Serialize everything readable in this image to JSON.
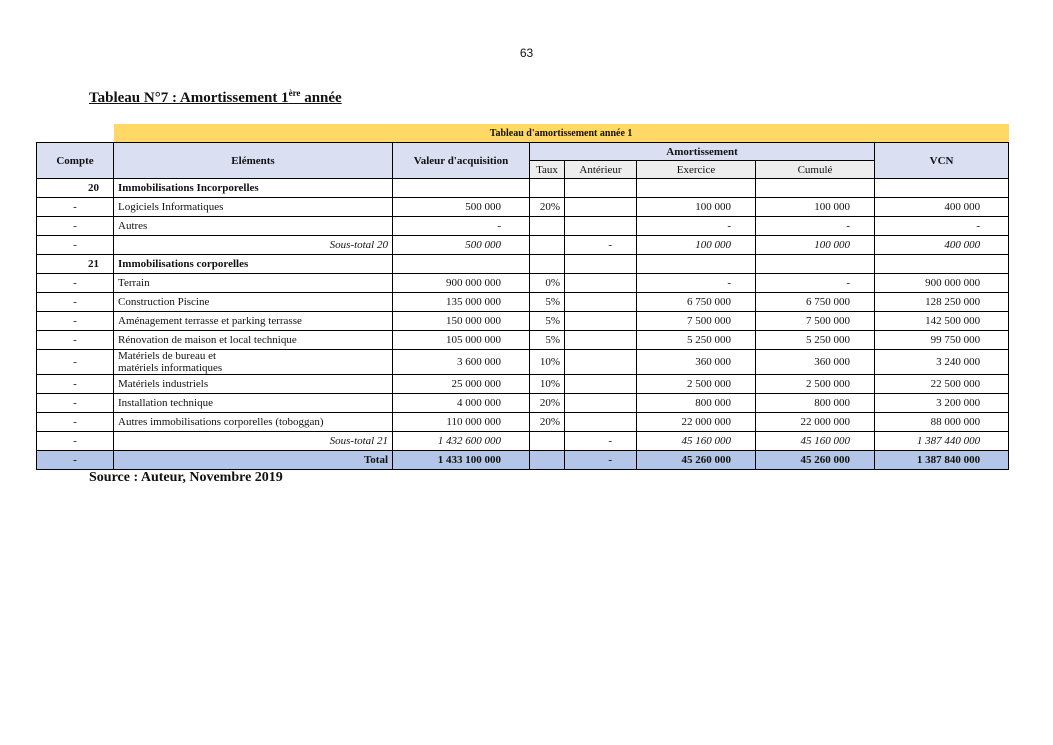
{
  "page_number": "63",
  "title": {
    "prefix": "Tableau N°7 : Amortissement 1",
    "sup": "ère",
    "suffix": " année"
  },
  "table": {
    "caption": "Tableau d'amortissement année 1",
    "headers": {
      "compte": "Compte",
      "elements": "Eléments",
      "valeur": "Valeur d'acquisition",
      "amortissement": "Amortissement",
      "vcn": "VCN",
      "taux": "Taux",
      "anterieur": "Antérieur",
      "exercice": "Exercice",
      "cumule": "Cumulé"
    },
    "rows": [
      {
        "type": "group",
        "compte": "20",
        "element": "Immobilisations Incorporelles",
        "valeur": "",
        "taux": "",
        "anterieur": "",
        "exercice": "",
        "cumule": "",
        "vcn": ""
      },
      {
        "type": "item",
        "compte": "-",
        "element": "Logiciels Informatiques",
        "valeur": "500 000",
        "taux": "20%",
        "anterieur": "",
        "exercice": "100 000",
        "cumule": "100 000",
        "vcn": "400 000"
      },
      {
        "type": "item",
        "compte": "-",
        "element": "Autres",
        "valeur": "-",
        "taux": "",
        "anterieur": "",
        "exercice": "-",
        "cumule": "-",
        "vcn": "-"
      },
      {
        "type": "sub",
        "compte": "-",
        "element": "Sous-total 20",
        "valeur": "500 000",
        "taux": "",
        "anterieur": "-",
        "exercice": "100 000",
        "cumule": "100 000",
        "vcn": "400 000"
      },
      {
        "type": "group",
        "compte": "21",
        "element": "Immobilisations corporelles",
        "valeur": "",
        "taux": "",
        "anterieur": "",
        "exercice": "",
        "cumule": "",
        "vcn": ""
      },
      {
        "type": "item",
        "compte": "-",
        "element": "Terrain",
        "valeur": "900 000 000",
        "taux": "0%",
        "anterieur": "",
        "exercice": "-",
        "cumule": "-",
        "vcn": "900 000 000"
      },
      {
        "type": "item",
        "compte": "-",
        "element": "Construction Piscine",
        "valeur": "135 000 000",
        "taux": "5%",
        "anterieur": "",
        "exercice": "6 750 000",
        "cumule": "6 750 000",
        "vcn": "128 250 000"
      },
      {
        "type": "item",
        "compte": "-",
        "element": "Aménagement terrasse et parking terrasse",
        "valeur": "150 000 000",
        "taux": "5%",
        "anterieur": "",
        "exercice": "7 500 000",
        "cumule": "7 500 000",
        "vcn": "142 500 000"
      },
      {
        "type": "item",
        "compte": "-",
        "element": "Rénovation de maison et local technique",
        "valeur": "105 000 000",
        "taux": "5%",
        "anterieur": "",
        "exercice": "5 250 000",
        "cumule": "5 250 000",
        "vcn": "99 750 000"
      },
      {
        "type": "tall",
        "compte": "-",
        "element": "Matériels de bureau et\nmatériels informatiques",
        "valeur": "3 600 000",
        "taux": "10%",
        "anterieur": "",
        "exercice": "360 000",
        "cumule": "360 000",
        "vcn": "3 240 000"
      },
      {
        "type": "item",
        "compte": "-",
        "element": "Matériels industriels",
        "valeur": "25 000 000",
        "taux": "10%",
        "anterieur": "",
        "exercice": "2 500 000",
        "cumule": "2 500 000",
        "vcn": "22 500 000"
      },
      {
        "type": "item",
        "compte": "-",
        "element": "Installation technique",
        "valeur": "4 000 000",
        "taux": "20%",
        "anterieur": "",
        "exercice": "800 000",
        "cumule": "800 000",
        "vcn": "3 200 000"
      },
      {
        "type": "item",
        "compte": "-",
        "element": "Autres immobilisations corporelles (toboggan)",
        "valeur": "110 000 000",
        "taux": "20%",
        "anterieur": "",
        "exercice": "22 000 000",
        "cumule": "22 000 000",
        "vcn": "88 000 000"
      },
      {
        "type": "sub",
        "compte": "-",
        "element": "Sous-total 21",
        "valeur": "1 432 600 000",
        "taux": "",
        "anterieur": "-",
        "exercice": "45 160 000",
        "cumule": "45 160 000",
        "vcn": "1 387 440 000"
      },
      {
        "type": "total",
        "compte": "-",
        "element": "Total",
        "valeur": "1 433 100 000",
        "taux": "",
        "anterieur": "-",
        "exercice": "45 260 000",
        "cumule": "45 260 000",
        "vcn": "1 387 840 000"
      }
    ]
  },
  "source": "Source : Auteur, Novembre 2019",
  "colors": {
    "caption_bg": "#fed966",
    "header_bg": "#dae0f2",
    "subheader_bg": "#ededed",
    "total_bg": "#b4c6e7"
  }
}
